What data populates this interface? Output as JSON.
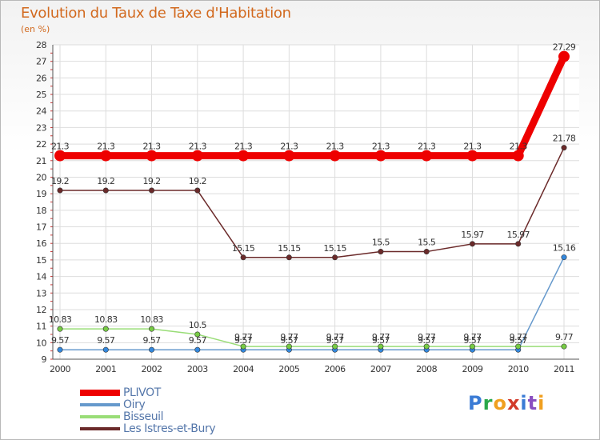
{
  "title": "Evolution du Taux de Taxe d'Habitation",
  "subtitle": "(en %)",
  "logo": {
    "letters": [
      "P",
      "r",
      "o",
      "x",
      "i",
      "t",
      "i"
    ],
    "colors": [
      "#3a7bd5",
      "#2aa84a",
      "#f0a020",
      "#d23a2a",
      "#3a7bd5",
      "#8a4fc0",
      "#f0a020"
    ]
  },
  "chart_data": {
    "type": "line",
    "categories": [
      "2000",
      "2001",
      "2002",
      "2003",
      "2004",
      "2005",
      "2006",
      "2007",
      "2008",
      "2009",
      "2010",
      "2011"
    ],
    "ylim": [
      9,
      28
    ],
    "yticks": [
      9,
      10,
      11,
      12,
      13,
      14,
      15,
      16,
      17,
      18,
      19,
      20,
      21,
      22,
      23,
      24,
      25,
      26,
      27,
      28
    ],
    "grid": true,
    "legend_position": "bottom-left",
    "series": [
      {
        "name": "PLIVOT",
        "color": "#ee0000",
        "dot": "#ee0000",
        "thick": true,
        "values": [
          21.3,
          21.3,
          21.3,
          21.3,
          21.3,
          21.3,
          21.3,
          21.3,
          21.3,
          21.3,
          21.3,
          27.29
        ],
        "labels": [
          "21.3",
          "21.3",
          "21.3",
          "21.3",
          "21.3",
          "21.3",
          "21.3",
          "21.3",
          "21.3",
          "21.3",
          "21.3",
          "27.29"
        ]
      },
      {
        "name": "Oiry",
        "color": "#6699cc",
        "dot": "#3388dd",
        "values": [
          9.57,
          9.57,
          9.57,
          9.57,
          9.57,
          9.57,
          9.57,
          9.57,
          9.57,
          9.57,
          9.57,
          15.16
        ],
        "labels": [
          "9.57",
          "9.57",
          "9.57",
          "9.57",
          "9.57",
          "9.57",
          "9.57",
          "9.57",
          "9.57",
          "9.57",
          "9.57",
          "15.16"
        ]
      },
      {
        "name": "Bisseuil",
        "color": "#99dd77",
        "dot": "#77cc44",
        "values": [
          10.83,
          10.83,
          10.83,
          10.5,
          9.77,
          9.77,
          9.77,
          9.77,
          9.77,
          9.77,
          9.77,
          9.77
        ],
        "labels": [
          "10.83",
          "10.83",
          "10.83",
          "10.5",
          "9.77",
          "9.77",
          "9.77",
          "9.77",
          "9.77",
          "9.77",
          "9.77",
          "9.77"
        ]
      },
      {
        "name": "Les Istres-et-Bury",
        "color": "#6b2a2a",
        "dot": "#6b2a2a",
        "values": [
          19.2,
          19.2,
          19.2,
          19.2,
          15.15,
          15.15,
          15.15,
          15.5,
          15.5,
          15.97,
          15.97,
          21.78
        ],
        "labels": [
          "19.2",
          "19.2",
          "19.2",
          "19.2",
          "15.15",
          "15.15",
          "15.15",
          "15.5",
          "15.5",
          "15.97",
          "15.97",
          "21.78"
        ]
      }
    ]
  }
}
